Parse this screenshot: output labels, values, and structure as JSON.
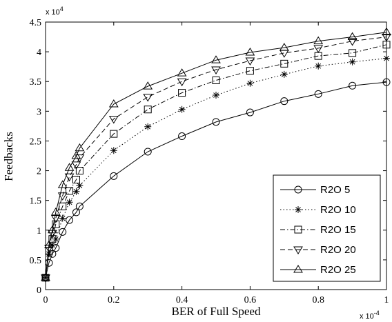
{
  "chart_data": {
    "type": "line",
    "xlabel": "BER of Full Speed",
    "ylabel": "Feedbacks",
    "x_exponent_label": "x 10",
    "x_exponent": "-4",
    "y_exponent_label": "x 10",
    "y_exponent": "4",
    "xlim": [
      0,
      1
    ],
    "ylim": [
      0,
      4.5
    ],
    "xticks": [
      "0",
      "0.2",
      "0.4",
      "0.6",
      "0.8",
      "1"
    ],
    "yticks": [
      "0",
      "0.5",
      "1",
      "1.5",
      "2",
      "2.5",
      "3",
      "3.5",
      "4",
      "4.5"
    ],
    "grid": false,
    "legend_position": "bottom-right",
    "x": [
      0,
      0.01,
      0.02,
      0.03,
      0.05,
      0.07,
      0.09,
      0.1,
      0.2,
      0.3,
      0.4,
      0.5,
      0.6,
      0.7,
      0.8,
      0.9,
      1.0
    ],
    "series": [
      {
        "name": "R2O 5",
        "marker": "circle",
        "dash": "solid",
        "values": [
          0.2,
          0.45,
          0.6,
          0.7,
          0.97,
          1.17,
          1.3,
          1.4,
          1.91,
          2.32,
          2.58,
          2.82,
          2.98,
          3.17,
          3.29,
          3.43,
          3.49
        ]
      },
      {
        "name": "R2O 10",
        "marker": "star",
        "dash": "dotted",
        "values": [
          0.2,
          0.6,
          0.75,
          0.85,
          1.2,
          1.47,
          1.65,
          1.75,
          2.34,
          2.74,
          3.03,
          3.27,
          3.47,
          3.62,
          3.76,
          3.83,
          3.89
        ]
      },
      {
        "name": "R2O 15",
        "marker": "square",
        "dash": "dashdot",
        "values": [
          0.2,
          0.65,
          0.85,
          1.1,
          1.4,
          1.66,
          1.85,
          2.0,
          2.62,
          3.03,
          3.31,
          3.52,
          3.68,
          3.8,
          3.93,
          3.98,
          4.12
        ]
      },
      {
        "name": "R2O 20",
        "marker": "triangle-down",
        "dash": "dashed",
        "values": [
          0.2,
          0.7,
          0.95,
          1.2,
          1.58,
          1.9,
          2.1,
          2.22,
          2.87,
          3.24,
          3.5,
          3.7,
          3.85,
          3.98,
          4.06,
          4.18,
          4.25
        ]
      },
      {
        "name": "R2O 25",
        "marker": "triangle-up",
        "dash": "solid",
        "values": [
          0.2,
          0.75,
          1.0,
          1.3,
          1.76,
          2.05,
          2.25,
          2.38,
          3.12,
          3.42,
          3.64,
          3.86,
          3.99,
          4.07,
          4.18,
          4.25,
          4.33
        ]
      }
    ]
  }
}
